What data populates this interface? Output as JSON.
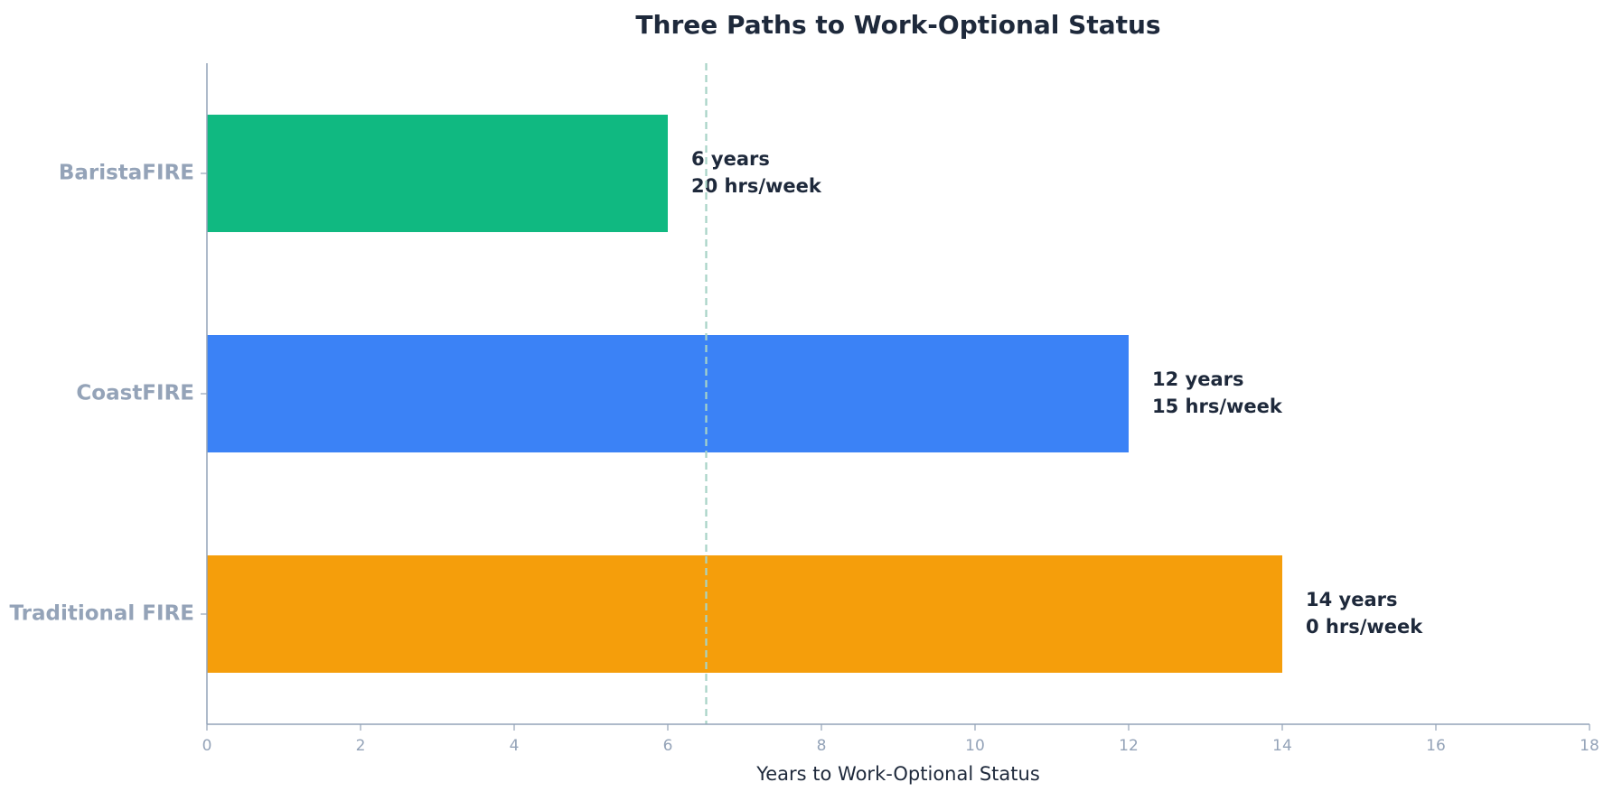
{
  "chart_data": {
    "type": "barh",
    "title": "Three Paths to Work-Optional Status",
    "categories": [
      "BaristaFIRE",
      "CoastFIRE",
      "Traditional FIRE"
    ],
    "values": [
      6,
      12,
      14
    ],
    "value_labels": [
      "6 years",
      "12 years",
      "14 years"
    ],
    "hours_labels": [
      "20 hrs/week",
      "15 hrs/week",
      "0 hrs/week"
    ],
    "colors": [
      "#10b981",
      "#3b82f6",
      "#f59e0b"
    ],
    "xlabel": "Years to Work-Optional Status",
    "xlim": [
      0,
      18
    ],
    "xticks": [
      0,
      2,
      4,
      6,
      8,
      10,
      12,
      14,
      16,
      18
    ],
    "reference_line": 6.5,
    "reference_color": "#a7d3c6"
  }
}
